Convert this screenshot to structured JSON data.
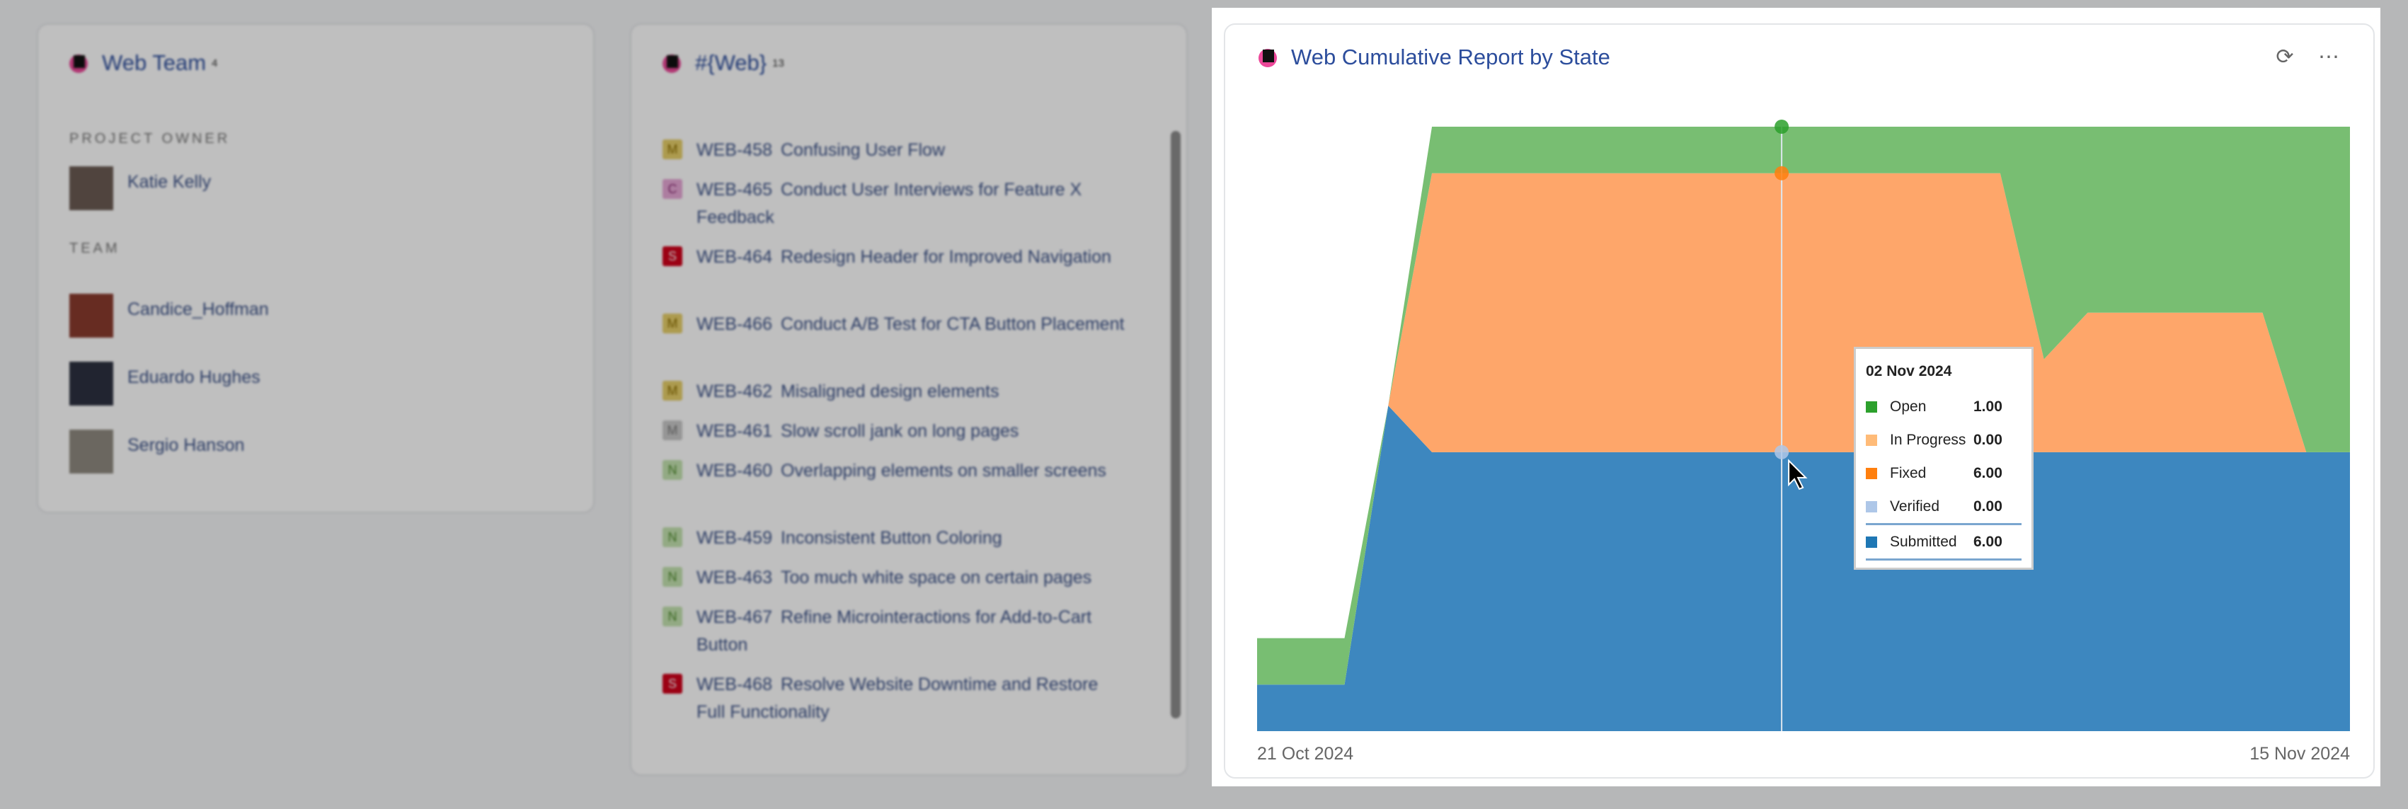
{
  "team_card": {
    "title": "Web Team",
    "count": "4",
    "owner_label": "PROJECT OWNER",
    "owner": {
      "name": "Katie Kelly",
      "avatar_color": "#6b5b53"
    },
    "team_label": "TEAM",
    "members": [
      {
        "name": "Candice_Hoffman",
        "avatar_color": "#8a3b2e"
      },
      {
        "name": "Eduardo Hughes",
        "avatar_color": "#2d3140"
      },
      {
        "name": "Sergio Hanson",
        "avatar_color": "#8f8a80"
      }
    ]
  },
  "issues_card": {
    "title": "#{Web}",
    "count": "13",
    "issues": [
      {
        "badge": "M",
        "badge_color": "#e7cf6a",
        "badge_text_color": "#8a6d00",
        "id": "WEB-458",
        "summary": "Confusing User Flow"
      },
      {
        "badge": "C",
        "badge_color": "#e7a7d6",
        "badge_text_color": "#8a2f75",
        "id": "WEB-465",
        "summary": "Conduct User Interviews for Feature X Feedback"
      },
      {
        "badge": "S",
        "badge_color": "#d0021b",
        "badge_text_color": "#ffffff",
        "id": "WEB-464",
        "summary": "Redesign Header for Improved Navigation"
      },
      {
        "badge": "M",
        "badge_color": "#e7cf6a",
        "badge_text_color": "#8a6d00",
        "id": "WEB-466",
        "summary": "Conduct A/B Test for CTA Button Placement"
      },
      {
        "badge": "M",
        "badge_color": "#e7cf6a",
        "badge_text_color": "#8a6d00",
        "id": "WEB-462",
        "summary": "Misaligned design elements"
      },
      {
        "badge": "M",
        "badge_color": "#c9c9c9",
        "badge_text_color": "#777777",
        "id": "WEB-461",
        "summary": "Slow scroll jank on long pages"
      },
      {
        "badge": "N",
        "badge_color": "#c4e3b0",
        "badge_text_color": "#4e8a2d",
        "id": "WEB-460",
        "summary": "Overlapping elements on smaller screens"
      },
      {
        "badge": "N",
        "badge_color": "#c4e3b0",
        "badge_text_color": "#4e8a2d",
        "id": "WEB-459",
        "summary": "Inconsistent Button Coloring"
      },
      {
        "badge": "N",
        "badge_color": "#c4e3b0",
        "badge_text_color": "#4e8a2d",
        "id": "WEB-463",
        "summary": "Too much white space on certain pages"
      },
      {
        "badge": "N",
        "badge_color": "#c4e3b0",
        "badge_text_color": "#4e8a2d",
        "id": "WEB-467",
        "summary": "Refine Microinteractions for Add-to-Cart Button"
      },
      {
        "badge": "S",
        "badge_color": "#d0021b",
        "badge_text_color": "#ffffff",
        "id": "WEB-468",
        "summary": "Resolve Website Downtime and Restore Full Functionality"
      }
    ]
  },
  "report": {
    "title": "Web Cumulative Report by State",
    "refresh_icon": "refresh-icon",
    "more_icon": "more-horizontal-icon",
    "x_start_label": "21 Oct 2024",
    "x_end_label": "15 Nov 2024",
    "tooltip": {
      "date": "02 Nov 2024",
      "rows": [
        {
          "name": "Open",
          "value": "1.00",
          "color": "#2ca02c"
        },
        {
          "name": "In Progress",
          "value": "0.00",
          "color": "#ffbb78"
        },
        {
          "name": "Fixed",
          "value": "6.00",
          "color": "#ff7f0e"
        },
        {
          "name": "Verified",
          "value": "0.00",
          "color": "#aec7e8"
        },
        {
          "name": "Submitted",
          "value": "6.00",
          "color": "#1f77b4"
        }
      ]
    }
  },
  "chart_data": {
    "type": "area",
    "stacked": true,
    "x_range": [
      "2024-10-21",
      "2024-11-15"
    ],
    "ylim": [
      0,
      13
    ],
    "grid": false,
    "hover_date": "2024-11-02",
    "x": [
      "2024-10-21",
      "2024-10-22",
      "2024-10-23",
      "2024-10-24",
      "2024-10-25",
      "2024-10-26",
      "2024-10-27",
      "2024-10-28",
      "2024-10-29",
      "2024-10-30",
      "2024-10-31",
      "2024-11-01",
      "2024-11-02",
      "2024-11-03",
      "2024-11-04",
      "2024-11-05",
      "2024-11-06",
      "2024-11-07",
      "2024-11-08",
      "2024-11-09",
      "2024-11-10",
      "2024-11-11",
      "2024-11-12",
      "2024-11-13",
      "2024-11-14",
      "2024-11-15"
    ],
    "series": [
      {
        "name": "Submitted",
        "color": "#1f77b4",
        "area_color": "#3d87bf",
        "values": [
          1,
          1,
          1,
          7,
          6,
          6,
          6,
          6,
          6,
          6,
          6,
          6,
          6,
          6,
          6,
          6,
          6,
          6,
          6,
          6,
          6,
          6,
          6,
          6,
          6,
          6
        ]
      },
      {
        "name": "Verified",
        "color": "#aec7e8",
        "area_color": "#aec7e8",
        "values": [
          0,
          0,
          0,
          0,
          0,
          0,
          0,
          0,
          0,
          0,
          0,
          0,
          0,
          0,
          0,
          0,
          0,
          0,
          0,
          0,
          0,
          0,
          0,
          0,
          0,
          0
        ]
      },
      {
        "name": "Fixed",
        "color": "#ff7f0e",
        "area_color": "#fea66a",
        "values": [
          0,
          0,
          0,
          0,
          6,
          6,
          6,
          6,
          6,
          6,
          6,
          6,
          6,
          6,
          6,
          6,
          6,
          6,
          2,
          3,
          3,
          3,
          3,
          3,
          0,
          0
        ]
      },
      {
        "name": "In Progress",
        "color": "#ffbb78",
        "area_color": "#ffc898",
        "values": [
          0,
          0,
          0,
          0,
          0,
          0,
          0,
          0,
          0,
          0,
          0,
          0,
          0,
          0,
          0,
          0,
          0,
          0,
          0,
          0,
          0,
          0,
          0,
          0,
          0,
          0
        ]
      },
      {
        "name": "Open",
        "color": "#2ca02c",
        "area_color": "#78be72",
        "values": [
          1,
          1,
          1,
          0,
          1,
          1,
          1,
          1,
          1,
          1,
          1,
          1,
          1,
          1,
          1,
          1,
          1,
          1,
          5,
          4,
          4,
          4,
          4,
          4,
          7,
          7
        ]
      }
    ]
  }
}
